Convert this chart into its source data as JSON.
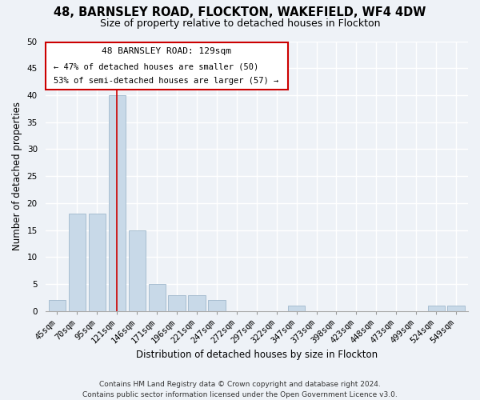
{
  "title": "48, BARNSLEY ROAD, FLOCKTON, WAKEFIELD, WF4 4DW",
  "subtitle": "Size of property relative to detached houses in Flockton",
  "xlabel": "Distribution of detached houses by size in Flockton",
  "ylabel": "Number of detached properties",
  "categories": [
    "45sqm",
    "70sqm",
    "95sqm",
    "121sqm",
    "146sqm",
    "171sqm",
    "196sqm",
    "221sqm",
    "247sqm",
    "272sqm",
    "297sqm",
    "322sqm",
    "347sqm",
    "373sqm",
    "398sqm",
    "423sqm",
    "448sqm",
    "473sqm",
    "499sqm",
    "524sqm",
    "549sqm"
  ],
  "values": [
    2,
    18,
    18,
    40,
    15,
    5,
    3,
    3,
    2,
    0,
    0,
    0,
    1,
    0,
    0,
    0,
    0,
    0,
    0,
    1,
    1
  ],
  "bar_color": "#c8d9e8",
  "bar_edge_color": "#a0b8cc",
  "highlight_bar_index": 3,
  "highlight_line_color": "#cc0000",
  "ylim": [
    0,
    50
  ],
  "yticks": [
    0,
    5,
    10,
    15,
    20,
    25,
    30,
    35,
    40,
    45,
    50
  ],
  "annotation_title": "48 BARNSLEY ROAD: 129sqm",
  "annotation_line1": "← 47% of detached houses are smaller (50)",
  "annotation_line2": "53% of semi-detached houses are larger (57) →",
  "annotation_box_color": "#ffffff",
  "annotation_box_edge": "#cc0000",
  "title_fontsize": 10.5,
  "subtitle_fontsize": 9,
  "axis_label_fontsize": 8.5,
  "tick_fontsize": 7.5,
  "ann_title_fontsize": 8,
  "ann_text_fontsize": 7.5,
  "footer_text": "Contains HM Land Registry data © Crown copyright and database right 2024.\nContains public sector information licensed under the Open Government Licence v3.0.",
  "footer_fontsize": 6.5,
  "bg_color": "#eef2f7"
}
